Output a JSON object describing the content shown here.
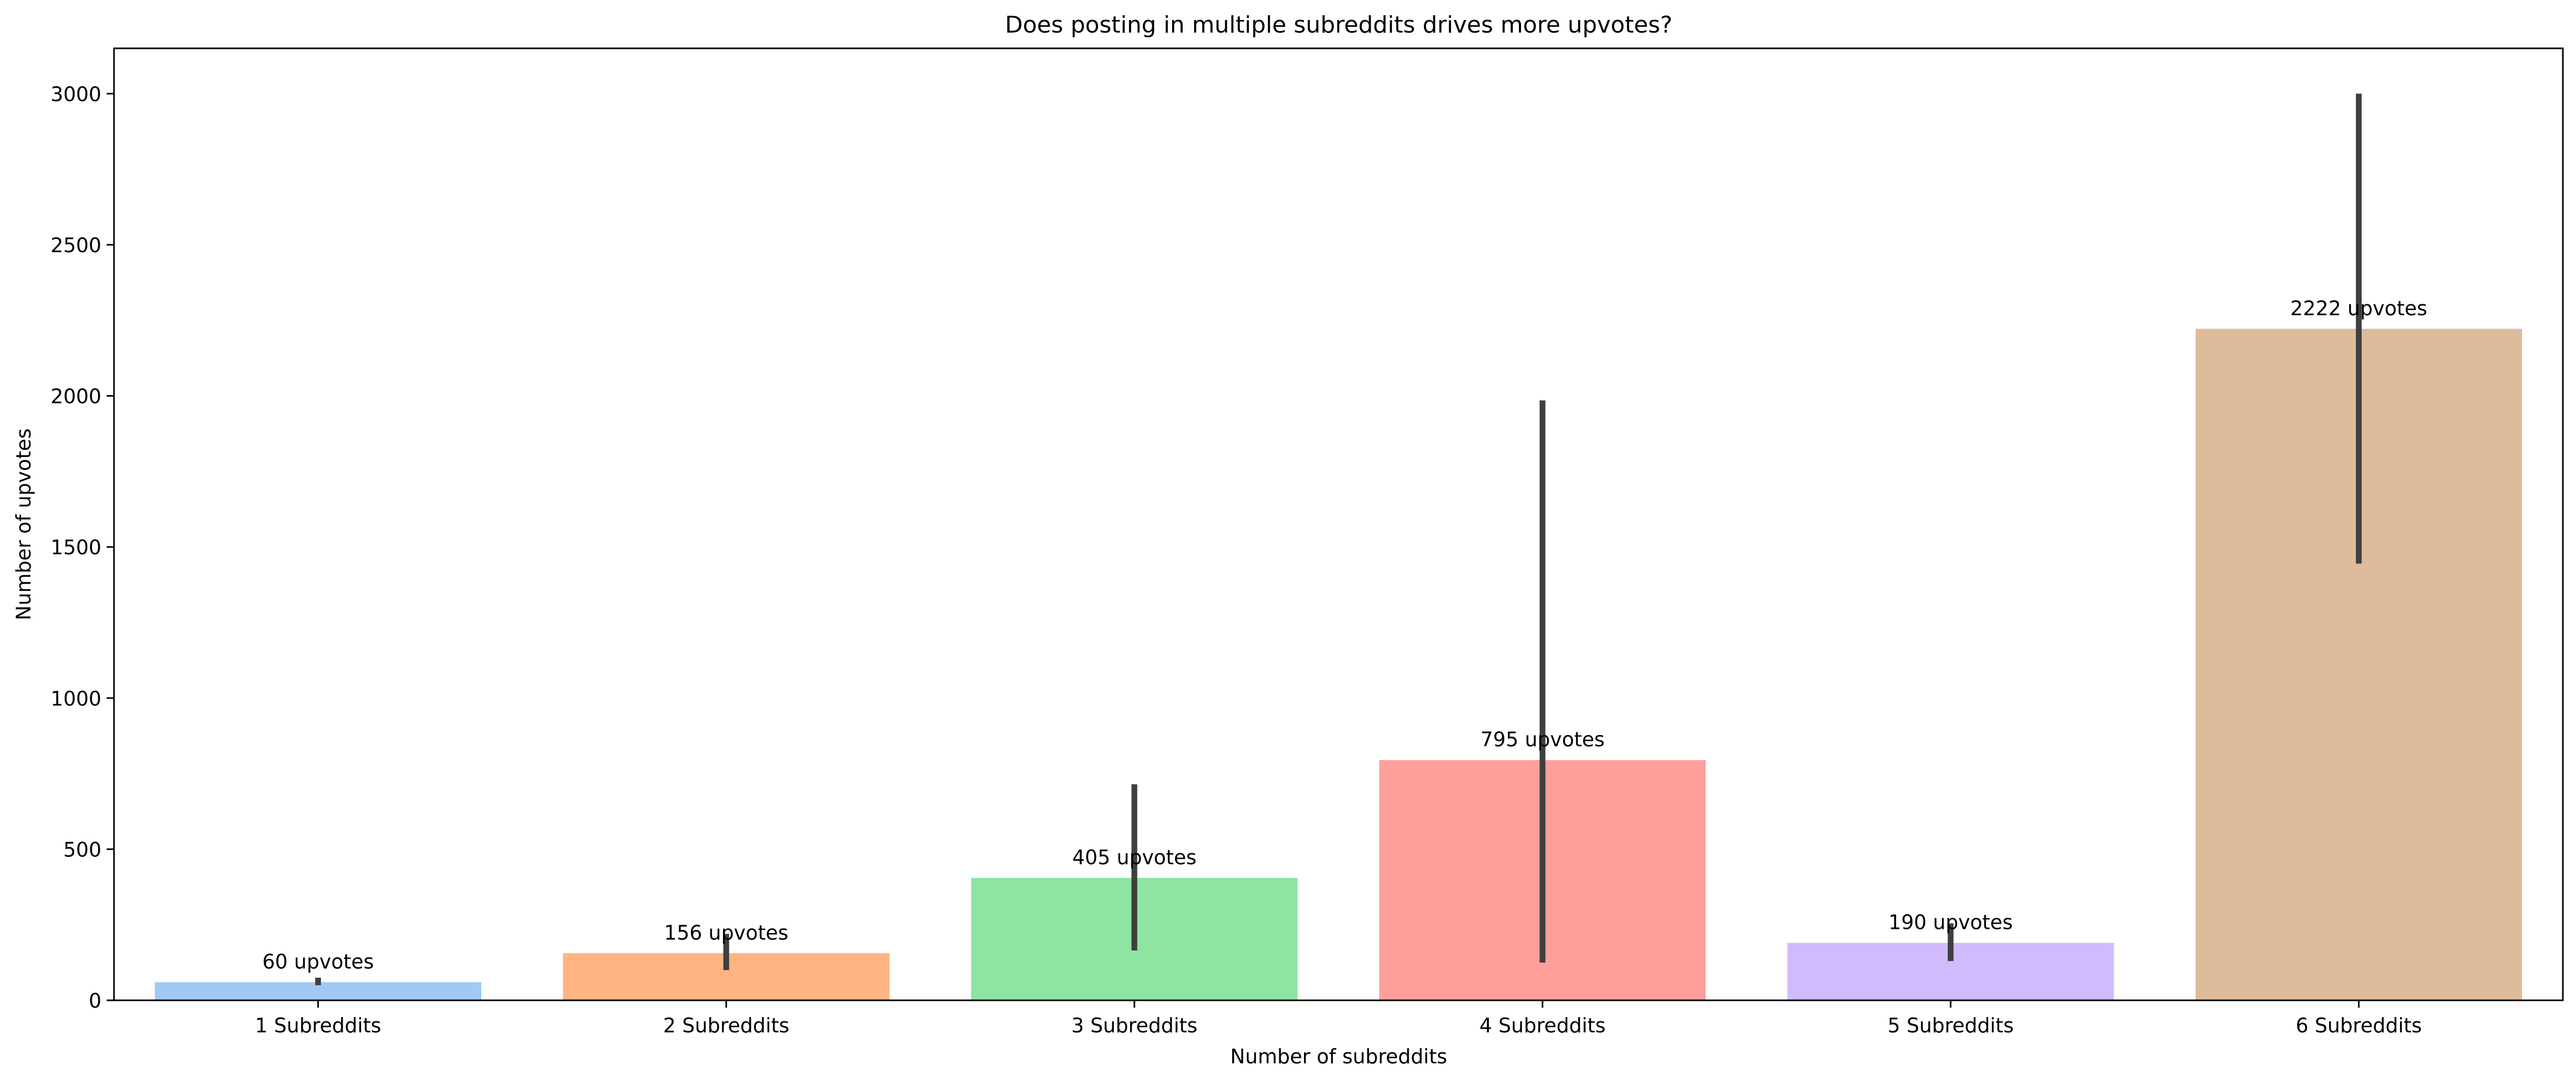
{
  "chart_data": {
    "type": "bar",
    "title": "Does posting in multiple subreddits drives more upvotes?",
    "xlabel": "Number of subreddits",
    "ylabel": "Number of upvotes",
    "ylim": [
      0,
      3150
    ],
    "yticks": [
      0,
      500,
      1000,
      1500,
      2000,
      2500,
      3000
    ],
    "categories": [
      "1 Subreddits",
      "2 Subreddits",
      "3 Subreddits",
      "4 Subreddits",
      "5 Subreddits",
      "6 Subreddits"
    ],
    "values": [
      60,
      156,
      405,
      795,
      190,
      2222
    ],
    "data_labels": [
      "60 upvotes",
      "156 upvotes",
      "405 upvotes",
      "795 upvotes",
      "190 upvotes",
      "2222 upvotes"
    ],
    "error_bars": [
      [
        50,
        75
      ],
      [
        100,
        220
      ],
      [
        165,
        715
      ],
      [
        125,
        1985
      ],
      [
        130,
        255
      ],
      [
        1445,
        3000
      ]
    ],
    "colors": [
      "#a1c9f4",
      "#ffb482",
      "#8de5a1",
      "#ff9f9b",
      "#d0bbff",
      "#debb9b"
    ],
    "error_bar_color": "#3f3f3f",
    "grid": false
  }
}
